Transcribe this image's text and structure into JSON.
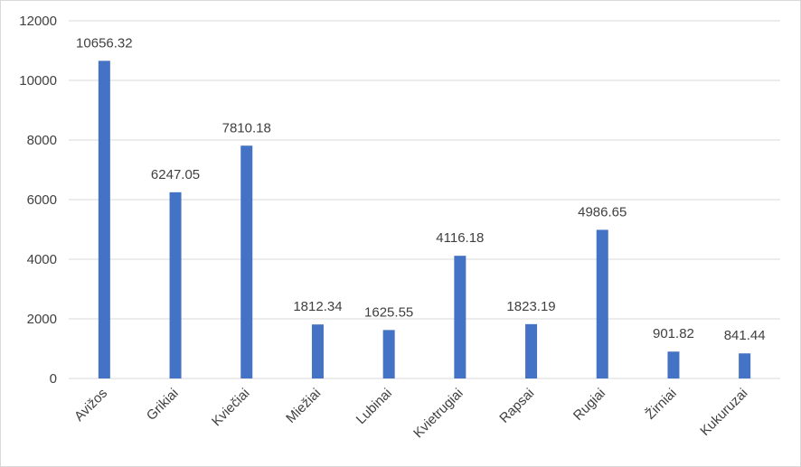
{
  "chart_data": {
    "type": "bar",
    "categories": [
      "Avižos",
      "Grikiai",
      "Kviečiai",
      "Miežiai",
      "Lubinai",
      "Kvietrugiai",
      "Rapsai",
      "Rugiai",
      "Žirniai",
      "Kukuruzai"
    ],
    "values": [
      10656.32,
      6247.05,
      7810.18,
      1812.34,
      1625.55,
      4116.18,
      1823.19,
      4986.65,
      901.82,
      841.44
    ],
    "data_labels": [
      "10656.32",
      "6247.05",
      "7810.18",
      "1812.34",
      "1625.55",
      "4116.18",
      "1823.19",
      "4986.65",
      "901.82",
      "841.44"
    ],
    "ylim": [
      0,
      12000
    ],
    "yticks": [
      "0",
      "2000",
      "4000",
      "6000",
      "8000",
      "10000",
      "12000"
    ],
    "grid": true,
    "legend": "none",
    "bar_color": "#4472C4",
    "grid_color": "#D9D9D9",
    "text_color": "#404040"
  }
}
